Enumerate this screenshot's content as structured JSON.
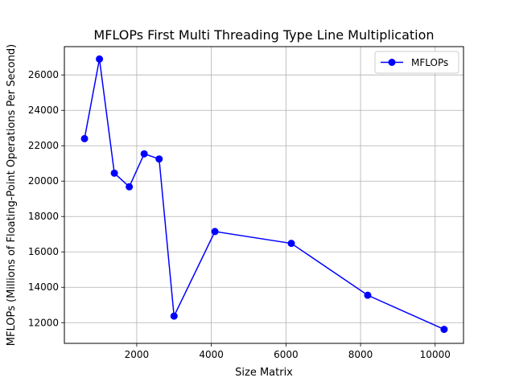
{
  "chart_data": {
    "type": "line",
    "title": "MFLOPs First Multi Threading Type Line Multiplication",
    "xlabel": "Size Matrix",
    "ylabel": "MFLOPs (Millions of Floating-Point Operations Per Second)",
    "xlim": [
      60,
      10760
    ],
    "ylim": [
      10830,
      27600
    ],
    "x_ticks": [
      2000,
      4000,
      6000,
      8000,
      10000
    ],
    "y_ticks": [
      12000,
      14000,
      16000,
      18000,
      20000,
      22000,
      24000,
      26000
    ],
    "grid": true,
    "legend_position": "top-right",
    "series": [
      {
        "name": "MFLOPs",
        "color": "#0000ff",
        "marker": "circle",
        "x": [
          600,
          1000,
          1400,
          1800,
          2200,
          2600,
          3000,
          4096,
          6144,
          8192,
          10240
        ],
        "y": [
          22400,
          26900,
          20450,
          19680,
          21540,
          21250,
          12370,
          17150,
          16480,
          13550,
          11620
        ]
      }
    ]
  }
}
